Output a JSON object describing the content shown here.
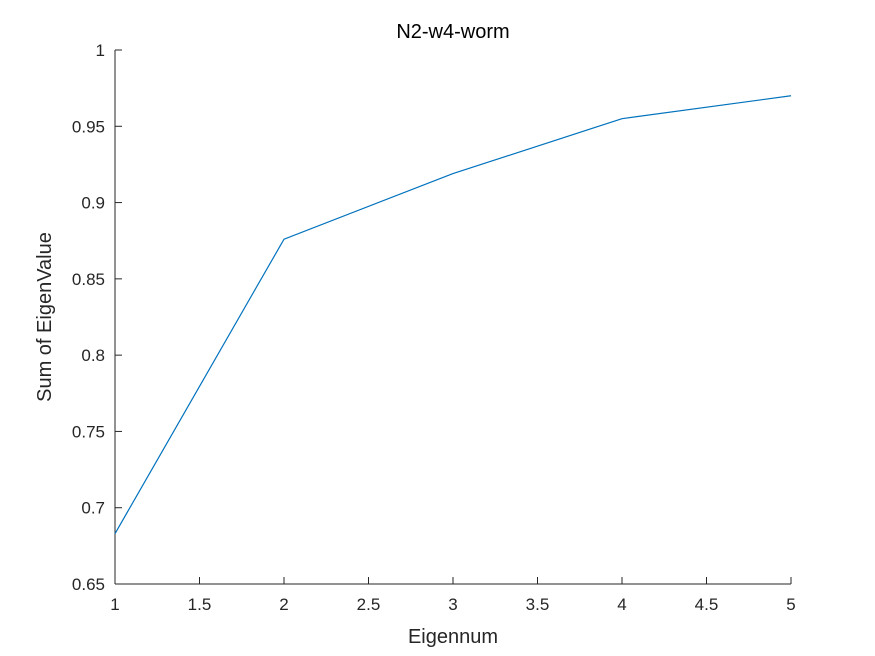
{
  "chart_data": {
    "type": "line",
    "title": "N2-w4-worm",
    "xlabel": "Eigennum",
    "ylabel": "Sum of EigenValue",
    "xlim": [
      1,
      5
    ],
    "ylim": [
      0.65,
      1
    ],
    "xticks": [
      "1",
      "1.5",
      "2",
      "2.5",
      "3",
      "3.5",
      "4",
      "4.5",
      "5"
    ],
    "yticks": [
      "0.65",
      "0.7",
      "0.75",
      "0.8",
      "0.85",
      "0.9",
      "0.95",
      "1"
    ],
    "grid": false,
    "series": [
      {
        "color": "#0072BD",
        "x": [
          1,
          2,
          3,
          4,
          5
        ],
        "y": [
          0.683,
          0.876,
          0.919,
          0.955,
          0.97
        ]
      }
    ]
  }
}
